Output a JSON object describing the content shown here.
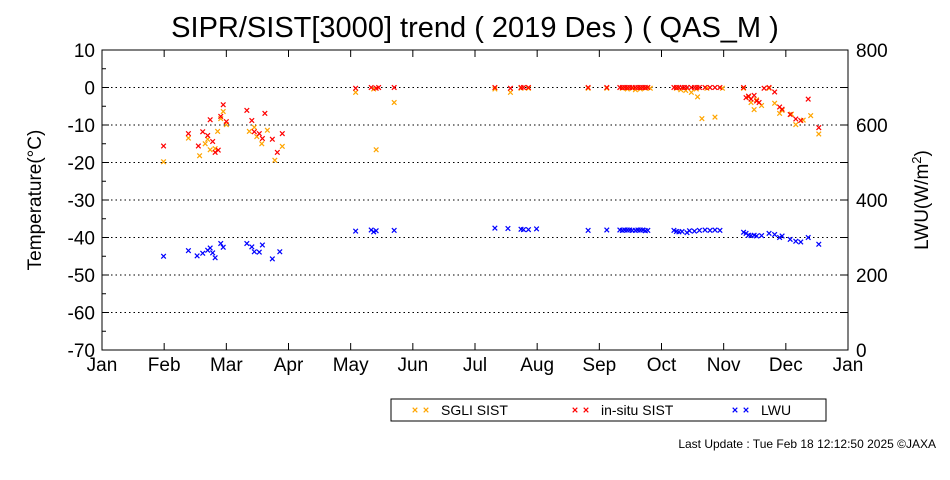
{
  "chart_data": {
    "type": "scatter",
    "title": "SIPR/SIST[3000] trend ( 2019 Des ) ( QAS_M )",
    "ylabel": "Temperature(°C)",
    "y2label": "LWU(W/m²)",
    "xlim": [
      0,
      12
    ],
    "ylim": [
      -70,
      10
    ],
    "y2lim": [
      0,
      800
    ],
    "x_ticks": [
      "Jan",
      "Feb",
      "Mar",
      "Apr",
      "May",
      "Jun",
      "Jul",
      "Aug",
      "Sep",
      "Oct",
      "Nov",
      "Dec",
      "Jan"
    ],
    "y_ticks": [
      "10",
      "0",
      "-10",
      "-20",
      "-30",
      "-40",
      "-50",
      "-60",
      "-70"
    ],
    "y2_ticks": [
      "800",
      "600",
      "400",
      "200",
      "0"
    ],
    "grid": "horizontal dotted",
    "legend_position": "bottom-right",
    "series": [
      {
        "name": "SGLI SIST",
        "color": "#ffa500",
        "axis": "left",
        "points": [
          [
            0.99,
            -19.8
          ],
          [
            1.39,
            -13.5
          ],
          [
            1.57,
            -18.2
          ],
          [
            1.66,
            -15.0
          ],
          [
            1.7,
            -13.8
          ],
          [
            1.74,
            -16.6
          ],
          [
            1.82,
            -16.3
          ],
          [
            1.86,
            -11.7
          ],
          [
            1.91,
            -8.3
          ],
          [
            1.95,
            -6.4
          ],
          [
            2.0,
            -9.9
          ],
          [
            2.37,
            -11.7
          ],
          [
            2.45,
            -10.6
          ],
          [
            2.49,
            -13.1
          ],
          [
            2.57,
            -15.0
          ],
          [
            2.66,
            -11.4
          ],
          [
            2.78,
            -19.4
          ],
          [
            2.9,
            -15.7
          ],
          [
            4.08,
            -1.3
          ],
          [
            4.37,
            -0.4
          ],
          [
            4.41,
            -16.6
          ],
          [
            4.7,
            -4.0
          ],
          [
            6.32,
            -0.4
          ],
          [
            6.57,
            -1.3
          ],
          [
            6.74,
            -0.2
          ],
          [
            6.86,
            -0.2
          ],
          [
            7.82,
            -0.2
          ],
          [
            8.12,
            -0.2
          ],
          [
            8.37,
            -0.2
          ],
          [
            8.45,
            -0.4
          ],
          [
            8.53,
            -0.2
          ],
          [
            8.58,
            -0.6
          ],
          [
            8.66,
            -0.4
          ],
          [
            8.74,
            -0.2
          ],
          [
            8.82,
            -0.2
          ],
          [
            9.24,
            -0.2
          ],
          [
            9.31,
            -0.6
          ],
          [
            9.39,
            -0.8
          ],
          [
            9.48,
            -1.3
          ],
          [
            9.56,
            -0.4
          ],
          [
            9.58,
            -2.5
          ],
          [
            9.65,
            -8.3
          ],
          [
            9.73,
            -0.2
          ],
          [
            9.86,
            -7.9
          ],
          [
            9.98,
            -0.2
          ],
          [
            10.32,
            -0.2
          ],
          [
            10.4,
            -2.5
          ],
          [
            10.44,
            -4.0
          ],
          [
            10.49,
            -5.9
          ],
          [
            10.53,
            -3.3
          ],
          [
            10.61,
            -4.8
          ],
          [
            10.73,
            -0.2
          ],
          [
            10.82,
            -4.2
          ],
          [
            10.9,
            -6.9
          ],
          [
            10.94,
            -6.1
          ],
          [
            11.09,
            -7.1
          ],
          [
            11.16,
            -9.9
          ],
          [
            11.28,
            -8.7
          ],
          [
            11.4,
            -7.5
          ],
          [
            11.53,
            -12.4
          ]
        ]
      },
      {
        "name": "in-situ SIST",
        "color": "#ff0000",
        "axis": "left",
        "points": [
          [
            0.99,
            -15.6
          ],
          [
            1.39,
            -12.3
          ],
          [
            1.55,
            -15.6
          ],
          [
            1.62,
            -11.8
          ],
          [
            1.7,
            -12.8
          ],
          [
            1.74,
            -8.6
          ],
          [
            1.78,
            -14.4
          ],
          [
            1.82,
            -17.3
          ],
          [
            1.87,
            -16.7
          ],
          [
            1.91,
            -7.7
          ],
          [
            1.95,
            -4.6
          ],
          [
            2.0,
            -9.1
          ],
          [
            2.33,
            -6.1
          ],
          [
            2.41,
            -8.8
          ],
          [
            2.45,
            -11.8
          ],
          [
            2.53,
            -12.3
          ],
          [
            2.58,
            -13.6
          ],
          [
            2.62,
            -6.9
          ],
          [
            2.74,
            -13.8
          ],
          [
            2.82,
            -17.3
          ],
          [
            2.9,
            -12.3
          ],
          [
            4.08,
            -0.2
          ],
          [
            4.33,
            0.0
          ],
          [
            4.41,
            -0.2
          ],
          [
            4.45,
            0.0
          ],
          [
            4.7,
            0.0
          ],
          [
            6.32,
            0.0
          ],
          [
            6.57,
            -0.2
          ],
          [
            6.74,
            0.0
          ],
          [
            6.78,
            0.0
          ],
          [
            6.86,
            0.0
          ],
          [
            7.82,
            0.0
          ],
          [
            8.12,
            0.0
          ],
          [
            8.33,
            0.0
          ],
          [
            8.37,
            0.0
          ],
          [
            8.41,
            0.0
          ],
          [
            8.45,
            0.0
          ],
          [
            8.49,
            0.0
          ],
          [
            8.53,
            0.0
          ],
          [
            8.58,
            0.0
          ],
          [
            8.62,
            0.0
          ],
          [
            8.66,
            0.0
          ],
          [
            8.7,
            0.0
          ],
          [
            8.74,
            0.0
          ],
          [
            8.78,
            0.0
          ],
          [
            9.2,
            0.0
          ],
          [
            9.24,
            0.0
          ],
          [
            9.28,
            0.0
          ],
          [
            9.33,
            0.0
          ],
          [
            9.37,
            0.0
          ],
          [
            9.41,
            0.0
          ],
          [
            9.48,
            0.0
          ],
          [
            9.53,
            0.0
          ],
          [
            9.57,
            0.0
          ],
          [
            9.61,
            0.0
          ],
          [
            9.7,
            0.0
          ],
          [
            9.78,
            0.0
          ],
          [
            9.86,
            0.0
          ],
          [
            9.94,
            0.0
          ],
          [
            10.32,
            0.0
          ],
          [
            10.36,
            -2.7
          ],
          [
            10.4,
            -2.3
          ],
          [
            10.44,
            -3.1
          ],
          [
            10.49,
            -2.1
          ],
          [
            10.53,
            -3.6
          ],
          [
            10.57,
            -4.0
          ],
          [
            10.65,
            -0.2
          ],
          [
            10.73,
            0.0
          ],
          [
            10.82,
            -1.2
          ],
          [
            10.9,
            -5.2
          ],
          [
            10.94,
            -5.8
          ],
          [
            11.07,
            -7.2
          ],
          [
            11.16,
            -8.4
          ],
          [
            11.24,
            -8.8
          ],
          [
            11.36,
            -3.1
          ],
          [
            11.53,
            -10.7
          ]
        ]
      },
      {
        "name": "LWU",
        "color": "#0000ff",
        "axis": "right",
        "points": [
          [
            0.99,
            250
          ],
          [
            1.39,
            265
          ],
          [
            1.53,
            251
          ],
          [
            1.62,
            258
          ],
          [
            1.7,
            266
          ],
          [
            1.74,
            272
          ],
          [
            1.78,
            259
          ],
          [
            1.82,
            246
          ],
          [
            1.91,
            284
          ],
          [
            1.95,
            274
          ],
          [
            2.33,
            284
          ],
          [
            2.41,
            275
          ],
          [
            2.45,
            262
          ],
          [
            2.53,
            261
          ],
          [
            2.58,
            280
          ],
          [
            2.74,
            243
          ],
          [
            2.86,
            262
          ],
          [
            4.08,
            317
          ],
          [
            4.33,
            320
          ],
          [
            4.37,
            315
          ],
          [
            4.41,
            318
          ],
          [
            4.7,
            319
          ],
          [
            6.32,
            325
          ],
          [
            6.53,
            324
          ],
          [
            6.74,
            322
          ],
          [
            6.78,
            321
          ],
          [
            6.86,
            321
          ],
          [
            6.99,
            323
          ],
          [
            7.82,
            319
          ],
          [
            8.12,
            320
          ],
          [
            8.33,
            320
          ],
          [
            8.37,
            319
          ],
          [
            8.41,
            320
          ],
          [
            8.45,
            320
          ],
          [
            8.49,
            320
          ],
          [
            8.53,
            319
          ],
          [
            8.58,
            319
          ],
          [
            8.62,
            320
          ],
          [
            8.66,
            320
          ],
          [
            8.7,
            320
          ],
          [
            8.74,
            318
          ],
          [
            8.78,
            319
          ],
          [
            9.2,
            319
          ],
          [
            9.24,
            316
          ],
          [
            9.28,
            315
          ],
          [
            9.33,
            316
          ],
          [
            9.41,
            313
          ],
          [
            9.45,
            318
          ],
          [
            9.53,
            317
          ],
          [
            9.61,
            319
          ],
          [
            9.7,
            320
          ],
          [
            9.78,
            319
          ],
          [
            9.86,
            320
          ],
          [
            9.94,
            319
          ],
          [
            10.32,
            314
          ],
          [
            10.36,
            311
          ],
          [
            10.4,
            306
          ],
          [
            10.44,
            305
          ],
          [
            10.49,
            306
          ],
          [
            10.53,
            304
          ],
          [
            10.61,
            305
          ],
          [
            10.73,
            311
          ],
          [
            10.82,
            308
          ],
          [
            10.9,
            300
          ],
          [
            10.94,
            304
          ],
          [
            11.07,
            295
          ],
          [
            11.16,
            290
          ],
          [
            11.24,
            288
          ],
          [
            11.36,
            300
          ],
          [
            11.53,
            282
          ]
        ]
      }
    ]
  },
  "footer": {
    "last_update": "Last Update : Tue Feb 18 12:12:50 2025  ©JAXA"
  }
}
